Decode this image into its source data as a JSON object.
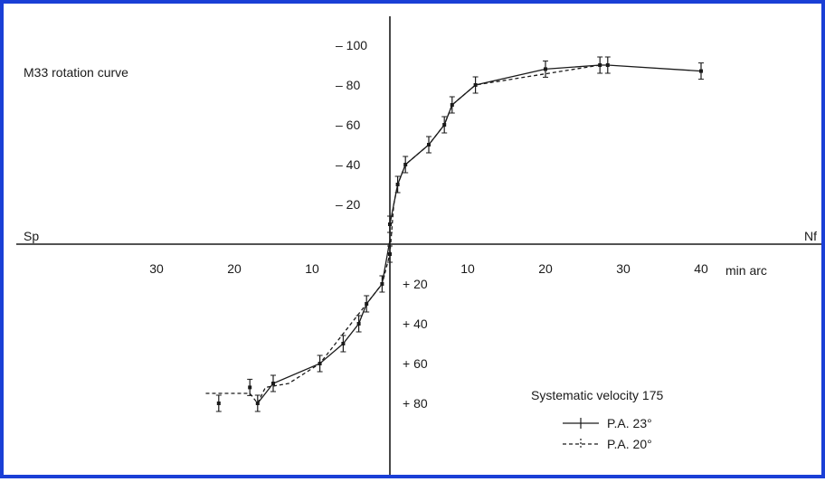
{
  "chart_data": {
    "type": "line",
    "title": "M33 rotation curve",
    "left_axis_end_label": "Sp",
    "right_axis_end_label": "Nf",
    "x_unit_label": "min arc",
    "x_ticks_left": [
      "30",
      "20",
      "10"
    ],
    "x_ticks_right": [
      "10",
      "20",
      "30",
      "40"
    ],
    "y_ticks_positive": [
      "– 100",
      "– 80",
      "– 60",
      "– 40",
      "– 20"
    ],
    "y_ticks_negative": [
      "+ 20",
      "+ 40",
      "+ 60",
      "+ 80"
    ],
    "annotation": "Systematic velocity 175",
    "x_range": [
      -42,
      43
    ],
    "y_range": [
      -112,
      102
    ],
    "series": [
      {
        "name": "P.A. 23°",
        "style": "solid",
        "points": [
          [
            40,
            87
          ],
          [
            28,
            90
          ],
          [
            27,
            90
          ],
          [
            20,
            88
          ],
          [
            11,
            80
          ],
          [
            8,
            70
          ],
          [
            7,
            60
          ],
          [
            5,
            50
          ],
          [
            2,
            40
          ],
          [
            1,
            30
          ],
          [
            0.5,
            20
          ],
          [
            0,
            10
          ],
          [
            0,
            2
          ],
          [
            -1,
            -20
          ],
          [
            -3,
            -30
          ],
          [
            -4,
            -40
          ],
          [
            -6,
            -50
          ],
          [
            -9,
            -60
          ],
          [
            -15,
            -70
          ],
          [
            -17,
            -80
          ]
        ]
      },
      {
        "name": "P.A. 20°",
        "style": "dashed",
        "points": [
          [
            27,
            90
          ],
          [
            11,
            80
          ],
          [
            8,
            70
          ],
          [
            7,
            60
          ],
          [
            5,
            50
          ],
          [
            2,
            40
          ],
          [
            1,
            30
          ],
          [
            0.5,
            20
          ],
          [
            0,
            -5
          ],
          [
            -1,
            -20
          ],
          [
            -3,
            -30
          ],
          [
            -5,
            -40
          ],
          [
            -7,
            -50
          ],
          [
            -9,
            -60
          ],
          [
            -11,
            -65
          ],
          [
            -13,
            -70
          ],
          [
            -16,
            -72
          ],
          [
            -17,
            -80
          ],
          [
            -18,
            -75
          ],
          [
            -22,
            -75
          ],
          [
            -24,
            -75
          ]
        ]
      }
    ],
    "error_points": [
      [
        40,
        87
      ],
      [
        28,
        90
      ],
      [
        27,
        90
      ],
      [
        20,
        88
      ],
      [
        11,
        80
      ],
      [
        8,
        70
      ],
      [
        7,
        60
      ],
      [
        5,
        50
      ],
      [
        2,
        40
      ],
      [
        1,
        30
      ],
      [
        0,
        10
      ],
      [
        0,
        -5
      ],
      [
        -1,
        -20
      ],
      [
        -3,
        -30
      ],
      [
        -4,
        -40
      ],
      [
        -6,
        -50
      ],
      [
        -9,
        -60
      ],
      [
        -15,
        -70
      ],
      [
        -17,
        -80
      ],
      [
        -18,
        -72
      ],
      [
        -22,
        -80
      ]
    ]
  }
}
